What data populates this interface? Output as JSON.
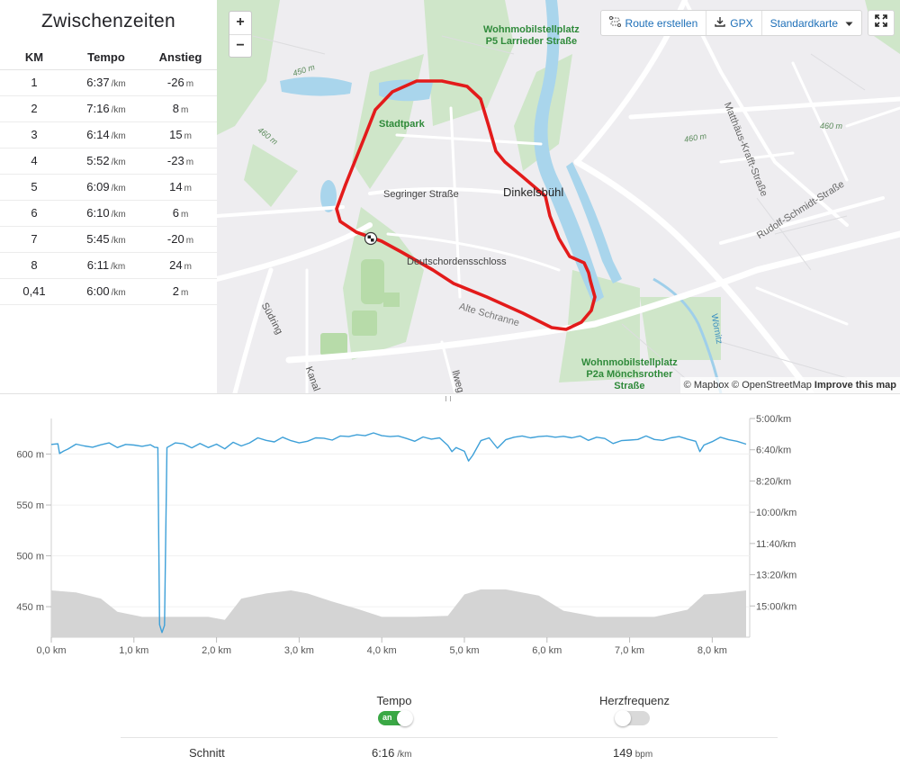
{
  "splits": {
    "title": "Zwischenzeiten",
    "headers": {
      "km": "KM",
      "pace": "Tempo",
      "elev": "Anstieg"
    },
    "pace_unit": "/km",
    "elev_unit": "m",
    "rows": [
      {
        "km": "1",
        "pace": "6:37",
        "elev": "-26"
      },
      {
        "km": "2",
        "pace": "7:16",
        "elev": "8"
      },
      {
        "km": "3",
        "pace": "6:14",
        "elev": "15"
      },
      {
        "km": "4",
        "pace": "5:52",
        "elev": "-23"
      },
      {
        "km": "5",
        "pace": "6:09",
        "elev": "14"
      },
      {
        "km": "6",
        "pace": "6:10",
        "elev": "6"
      },
      {
        "km": "7",
        "pace": "5:45",
        "elev": "-20"
      },
      {
        "km": "8",
        "pace": "6:11",
        "elev": "24"
      },
      {
        "km": "0,41",
        "pace": "6:00",
        "elev": "2"
      }
    ]
  },
  "map": {
    "zoom_in": "+",
    "zoom_out": "−",
    "buttons": {
      "route": "Route erstellen",
      "gpx": "GPX",
      "style": "Standardkarte"
    },
    "attribution": {
      "mapbox": "© Mapbox",
      "osm": "© OpenStreetMap",
      "improve": "Improve this map"
    },
    "labels": {
      "parking_north": "Wohnmobilstellplatz\nP5 Larrieder Straße",
      "parking_south": "Wohnmobilstellplatz\nP2a Mönchsrother\nStraße",
      "stadtpark": "Stadtpark",
      "town": "Dinkelsbühl",
      "segringer": "Segringer Straße",
      "schloss": "Deutschordensschloss",
      "matthaeus": "Matthäus-Krafft-Straße",
      "rudolf": "Rudolf-Schmidt-Straße",
      "suedring": "Südring",
      "woernitz": "Wörnitz",
      "alt_450": "450 m",
      "alt_460a": "460 m",
      "alt_460b": "460 m",
      "alt_460c": "460 m",
      "kanal": "Kanal",
      "weg": "llweg",
      "alte_schranne": "Alte Schranne"
    }
  },
  "chart_data": {
    "type": "line",
    "xlabel": "",
    "x_ticks": [
      "0,0 km",
      "1,0 km",
      "2,0 km",
      "3,0 km",
      "4,0 km",
      "5,0 km",
      "6,0 km",
      "7,0 km",
      "8,0 km"
    ],
    "xlim": [
      0,
      8.41
    ],
    "y_left_ticks": [
      "600 m",
      "550 m",
      "500 m",
      "450 m"
    ],
    "ylim_elevation": [
      420,
      635
    ],
    "y_right_ticks": [
      "5:00/km",
      "6:40/km",
      "8:20/km",
      "10:00/km",
      "11:40/km",
      "13:20/km",
      "15:00/km"
    ],
    "ylim_pace_seconds": [
      300,
      1000
    ],
    "grid": true,
    "series": [
      {
        "kind": "area",
        "color": "#d4d4d4",
        "x": [
          0,
          0.3,
          0.6,
          0.8,
          1.1,
          1.5,
          1.9,
          2.1,
          2.3,
          2.6,
          2.9,
          3.1,
          3.4,
          3.7,
          4.0,
          4.4,
          4.8,
          5.0,
          5.2,
          5.5,
          5.9,
          6.2,
          6.6,
          7.0,
          7.3,
          7.7,
          7.9,
          8.1,
          8.41
        ],
        "values": [
          466,
          464,
          458,
          445,
          440,
          440,
          440,
          437,
          458,
          463,
          466,
          463,
          455,
          448,
          440,
          440,
          441,
          462,
          467,
          467,
          461,
          446,
          440,
          440,
          440,
          447,
          462,
          463,
          466
        ]
      },
      {
        "kind": "line",
        "color": "#3ea0d8",
        "x": [
          0,
          0.08,
          0.1,
          0.15,
          0.2,
          0.3,
          0.4,
          0.5,
          0.6,
          0.7,
          0.8,
          0.9,
          1.0,
          1.1,
          1.2,
          1.25,
          1.29,
          1.31,
          1.34,
          1.37,
          1.4,
          1.5,
          1.6,
          1.7,
          1.8,
          1.9,
          2.0,
          2.1,
          2.2,
          2.3,
          2.4,
          2.5,
          2.6,
          2.7,
          2.8,
          2.9,
          3.0,
          3.1,
          3.2,
          3.3,
          3.4,
          3.5,
          3.6,
          3.7,
          3.8,
          3.9,
          4.0,
          4.1,
          4.2,
          4.3,
          4.4,
          4.5,
          4.6,
          4.7,
          4.8,
          4.85,
          4.9,
          5.0,
          5.05,
          5.1,
          5.2,
          5.3,
          5.4,
          5.5,
          5.6,
          5.7,
          5.8,
          5.9,
          6.0,
          6.1,
          6.2,
          6.3,
          6.4,
          6.5,
          6.6,
          6.7,
          6.8,
          6.9,
          7.0,
          7.1,
          7.2,
          7.3,
          7.4,
          7.5,
          7.6,
          7.7,
          7.8,
          7.85,
          7.9,
          8.0,
          8.1,
          8.2,
          8.3,
          8.41
        ],
        "values": [
          383,
          381,
          412,
          404,
          398,
          382,
          388,
          392,
          384,
          378,
          393,
          383,
          385,
          389,
          384,
          392,
          393,
          960,
          985,
          962,
          393,
          378,
          381,
          394,
          380,
          393,
          382,
          397,
          376,
          388,
          378,
          362,
          370,
          375,
          360,
          371,
          378,
          373,
          362,
          363,
          369,
          356,
          358,
          352,
          355,
          346,
          355,
          358,
          356,
          364,
          373,
          359,
          366,
          362,
          386,
          406,
          393,
          405,
          436,
          418,
          371,
          362,
          395,
          368,
          360,
          356,
          362,
          358,
          356,
          360,
          357,
          362,
          356,
          370,
          360,
          364,
          380,
          371,
          369,
          367,
          356,
          367,
          370,
          362,
          358,
          366,
          373,
          406,
          385,
          374,
          360,
          368,
          373,
          382
        ]
      }
    ]
  },
  "controls": {
    "tempo_label": "Tempo",
    "tempo_state": "an",
    "hr_label": "Herzfrequenz",
    "avg_label": "Schnitt",
    "avg_pace": "6:16",
    "avg_pace_unit": "/km",
    "avg_hr": "149",
    "avg_hr_unit": "bpm"
  }
}
